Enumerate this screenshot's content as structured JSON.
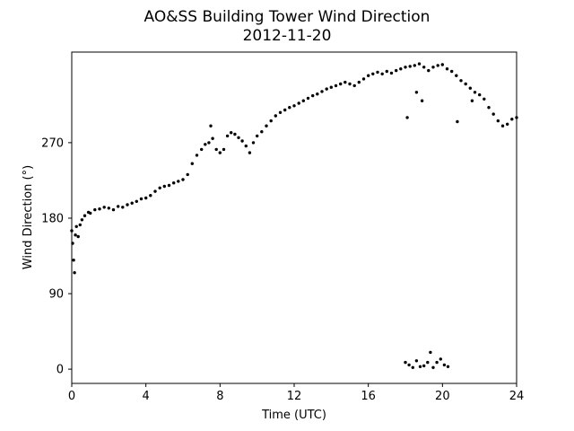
{
  "chart_data": {
    "type": "scatter",
    "title": "AO&SS Building Tower Wind Direction",
    "subtitle": "2012-11-20",
    "xlabel": "Time (UTC)",
    "ylabel": "Wind Direction (°)",
    "xlim": [
      0,
      24
    ],
    "ylim": [
      -17,
      378
    ],
    "x_ticks": [
      0,
      4,
      8,
      12,
      16,
      20,
      24
    ],
    "y_ticks": [
      0,
      90,
      180,
      270
    ],
    "grid": false,
    "legend": "none",
    "marker_color": "#000000",
    "series": [
      {
        "points": [
          [
            0.0,
            165
          ],
          [
            0.05,
            150
          ],
          [
            0.1,
            130
          ],
          [
            0.15,
            115
          ],
          [
            0.2,
            160
          ],
          [
            0.25,
            170
          ],
          [
            0.35,
            158
          ],
          [
            0.45,
            172
          ],
          [
            0.55,
            178
          ],
          [
            0.7,
            183
          ],
          [
            0.9,
            187
          ],
          [
            1.0,
            186
          ],
          [
            1.25,
            190
          ],
          [
            1.5,
            191
          ],
          [
            1.75,
            193
          ],
          [
            2.0,
            192
          ],
          [
            2.25,
            190
          ],
          [
            2.5,
            194
          ],
          [
            2.75,
            193
          ],
          [
            3.0,
            196
          ],
          [
            3.25,
            198
          ],
          [
            3.5,
            200
          ],
          [
            3.75,
            203
          ],
          [
            4.0,
            204
          ],
          [
            4.25,
            207
          ],
          [
            4.5,
            212
          ],
          [
            4.75,
            216
          ],
          [
            5.0,
            218
          ],
          [
            5.25,
            219
          ],
          [
            5.5,
            222
          ],
          [
            5.75,
            224
          ],
          [
            6.0,
            226
          ],
          [
            6.25,
            232
          ],
          [
            6.5,
            245
          ],
          [
            6.75,
            255
          ],
          [
            7.0,
            262
          ],
          [
            7.2,
            268
          ],
          [
            7.4,
            270
          ],
          [
            7.5,
            290
          ],
          [
            7.6,
            275
          ],
          [
            7.8,
            262
          ],
          [
            8.0,
            258
          ],
          [
            8.2,
            262
          ],
          [
            8.4,
            278
          ],
          [
            8.6,
            282
          ],
          [
            8.8,
            280
          ],
          [
            9.0,
            276
          ],
          [
            9.2,
            272
          ],
          [
            9.4,
            266
          ],
          [
            9.6,
            258
          ],
          [
            9.8,
            270
          ],
          [
            10.0,
            278
          ],
          [
            10.25,
            283
          ],
          [
            10.5,
            290
          ],
          [
            10.75,
            296
          ],
          [
            11.0,
            302
          ],
          [
            11.25,
            306
          ],
          [
            11.5,
            309
          ],
          [
            11.75,
            312
          ],
          [
            12.0,
            314
          ],
          [
            12.25,
            317
          ],
          [
            12.5,
            320
          ],
          [
            12.75,
            323
          ],
          [
            13.0,
            326
          ],
          [
            13.25,
            328
          ],
          [
            13.5,
            331
          ],
          [
            13.75,
            334
          ],
          [
            14.0,
            336
          ],
          [
            14.25,
            338
          ],
          [
            14.5,
            340
          ],
          [
            14.75,
            342
          ],
          [
            15.0,
            340
          ],
          [
            15.25,
            338
          ],
          [
            15.5,
            342
          ],
          [
            15.75,
            346
          ],
          [
            16.0,
            350
          ],
          [
            16.25,
            352
          ],
          [
            16.5,
            354
          ],
          [
            16.75,
            352
          ],
          [
            17.0,
            355
          ],
          [
            17.25,
            353
          ],
          [
            17.5,
            356
          ],
          [
            17.75,
            358
          ],
          [
            18.0,
            360
          ],
          [
            18.25,
            361
          ],
          [
            18.5,
            362
          ],
          [
            18.75,
            364
          ],
          [
            19.0,
            360
          ],
          [
            19.25,
            356
          ],
          [
            19.5,
            360
          ],
          [
            19.75,
            362
          ],
          [
            20.0,
            363
          ],
          [
            20.25,
            358
          ],
          [
            20.5,
            355
          ],
          [
            20.75,
            350
          ],
          [
            21.0,
            344
          ],
          [
            21.25,
            340
          ],
          [
            21.5,
            335
          ],
          [
            21.75,
            330
          ],
          [
            22.0,
            327
          ],
          [
            22.25,
            322
          ],
          [
            22.5,
            312
          ],
          [
            22.75,
            304
          ],
          [
            23.0,
            296
          ],
          [
            23.25,
            290
          ],
          [
            23.5,
            292
          ],
          [
            23.75,
            298
          ],
          [
            24.0,
            300
          ],
          [
            18.1,
            300
          ],
          [
            18.6,
            330
          ],
          [
            18.9,
            320
          ],
          [
            20.8,
            295
          ],
          [
            21.6,
            320
          ],
          [
            18.0,
            8
          ],
          [
            18.2,
            5
          ],
          [
            18.4,
            2
          ],
          [
            18.6,
            10
          ],
          [
            18.8,
            3
          ],
          [
            19.0,
            4
          ],
          [
            19.2,
            8
          ],
          [
            19.35,
            20
          ],
          [
            19.5,
            2
          ],
          [
            19.7,
            8
          ],
          [
            19.9,
            12
          ],
          [
            20.1,
            5
          ],
          [
            20.3,
            3
          ]
        ]
      }
    ]
  }
}
